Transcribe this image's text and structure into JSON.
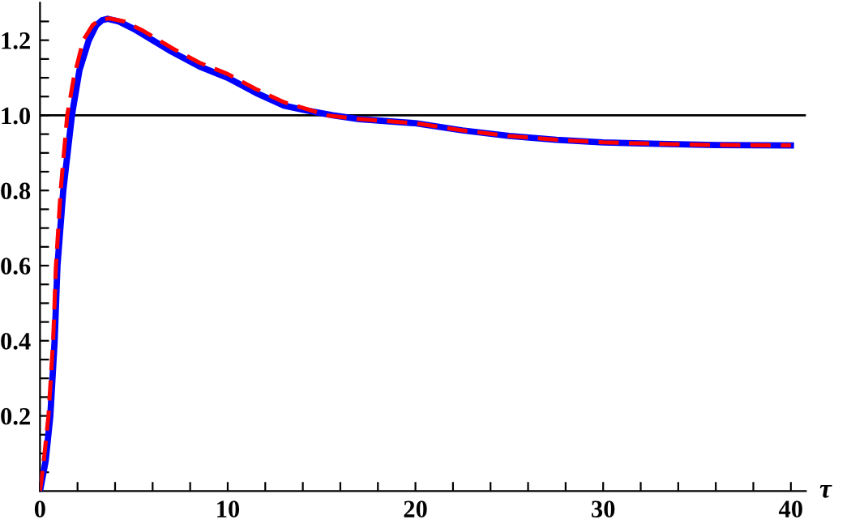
{
  "chart_data": {
    "type": "line",
    "xlabel": "τ",
    "xlim": [
      0,
      40.8
    ],
    "ylim": [
      0,
      1.3
    ],
    "xticks": [
      0,
      {
        "value": 2,
        "label": null
      },
      {
        "value": 4,
        "label": null
      },
      {
        "value": 6,
        "label": null
      },
      {
        "value": 8,
        "label": null
      },
      10,
      {
        "value": 12,
        "label": null
      },
      {
        "value": 14,
        "label": null
      },
      {
        "value": 16,
        "label": null
      },
      {
        "value": 18,
        "label": null
      },
      20,
      {
        "value": 22,
        "label": null
      },
      {
        "value": 24,
        "label": null
      },
      {
        "value": 26,
        "label": null
      },
      {
        "value": 28,
        "label": null
      },
      30,
      {
        "value": 32,
        "label": null
      },
      {
        "value": 34,
        "label": null
      },
      {
        "value": 36,
        "label": null
      },
      {
        "value": 38,
        "label": null
      },
      40
    ],
    "yticks": [
      {
        "value": 0.05,
        "label": null
      },
      {
        "value": 0.1,
        "label": null
      },
      {
        "value": 0.15,
        "label": null
      },
      {
        "value": 0.2,
        "label": "0.2"
      },
      {
        "value": 0.25,
        "label": null
      },
      {
        "value": 0.3,
        "label": null
      },
      {
        "value": 0.35,
        "label": null
      },
      {
        "value": 0.4,
        "label": "0.4"
      },
      {
        "value": 0.45,
        "label": null
      },
      {
        "value": 0.5,
        "label": null
      },
      {
        "value": 0.55,
        "label": null
      },
      {
        "value": 0.6,
        "label": "0.6"
      },
      {
        "value": 0.65,
        "label": null
      },
      {
        "value": 0.7,
        "label": null
      },
      {
        "value": 0.75,
        "label": null
      },
      {
        "value": 0.8,
        "label": "0.8"
      },
      {
        "value": 0.85,
        "label": null
      },
      {
        "value": 0.9,
        "label": null
      },
      {
        "value": 0.95,
        "label": null
      },
      {
        "value": 1.0,
        "label": "1.0"
      },
      {
        "value": 1.05,
        "label": null
      },
      {
        "value": 1.1,
        "label": null
      },
      {
        "value": 1.15,
        "label": null
      },
      {
        "value": 1.2,
        "label": "1.2"
      },
      {
        "value": 1.25,
        "label": null
      }
    ],
    "grid": false,
    "legend": false,
    "marker": "none",
    "ref_lines": [
      {
        "axis": "y",
        "value": 1.0,
        "color": "#000000",
        "line_style": "solid"
      }
    ],
    "series": [
      {
        "color": "#ff0000",
        "line_style": "dashed",
        "x": [
          0,
          0.2,
          0.45,
          0.7,
          0.85,
          1.1,
          1.45,
          1.8,
          2.3,
          2.8,
          3.2,
          3.7,
          4.5,
          5.5,
          7,
          8.5,
          10,
          11.5,
          13,
          14,
          15.3,
          17,
          20,
          22.5,
          25,
          27.5,
          30,
          33,
          36,
          40
        ],
        "values": [
          0,
          0.08,
          0.2,
          0.4,
          0.6,
          0.8,
          1.0,
          1.1,
          1.2,
          1.24,
          1.255,
          1.258,
          1.25,
          1.225,
          1.18,
          1.14,
          1.11,
          1.07,
          1.035,
          1.02,
          1.0,
          0.99,
          0.979,
          0.96,
          0.945,
          0.935,
          0.928,
          0.924,
          0.921,
          0.92
        ]
      },
      {
        "color": "#0000ff",
        "line_style": "solid",
        "x": [
          0,
          0.3,
          0.55,
          0.78,
          0.93,
          1.24,
          1.7,
          2.1,
          2.6,
          3.0,
          3.3,
          3.6,
          4.2,
          5,
          6,
          7,
          8.5,
          10,
          11.5,
          13,
          14,
          15.6,
          17,
          20,
          22.5,
          25,
          27.5,
          30,
          33,
          36,
          40
        ],
        "values": [
          0,
          0.08,
          0.2,
          0.4,
          0.6,
          0.8,
          1.0,
          1.12,
          1.2,
          1.24,
          1.253,
          1.257,
          1.25,
          1.23,
          1.2,
          1.17,
          1.13,
          1.1,
          1.06,
          1.026,
          1.015,
          1.0,
          0.99,
          0.979,
          0.96,
          0.945,
          0.935,
          0.928,
          0.924,
          0.921,
          0.92
        ]
      }
    ]
  }
}
